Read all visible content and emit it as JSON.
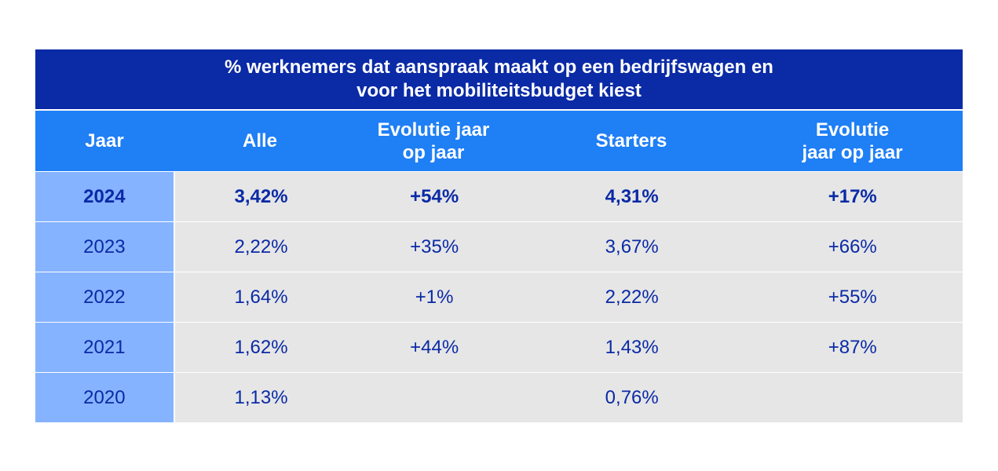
{
  "chart_data": {
    "type": "table",
    "title_lines": [
      "% werknemers dat aanspraak maakt op een bedrijfswagen en",
      "voor het mobiliteitsbudget kiest"
    ],
    "columns": [
      {
        "lines": [
          "Jaar"
        ]
      },
      {
        "lines": [
          "Alle"
        ]
      },
      {
        "lines": [
          "Evolutie jaar",
          "op jaar"
        ]
      },
      {
        "lines": [
          "Starters"
        ]
      },
      {
        "lines": [
          "Evolutie",
          "jaar op jaar"
        ]
      }
    ],
    "rows": [
      {
        "highlight": true,
        "cells": [
          "2024",
          "3,42%",
          "+54%",
          "4,31%",
          "+17%"
        ]
      },
      {
        "highlight": false,
        "cells": [
          "2023",
          "2,22%",
          "+35%",
          "3,67%",
          "+66%"
        ]
      },
      {
        "highlight": false,
        "cells": [
          "2022",
          "1,64%",
          "+1%",
          "2,22%",
          "+55%"
        ]
      },
      {
        "highlight": false,
        "cells": [
          "2021",
          "1,62%",
          "+44%",
          "1,43%",
          "+87%"
        ]
      },
      {
        "highlight": false,
        "cells": [
          "2020",
          "1,13%",
          "",
          "0,76%",
          ""
        ]
      }
    ]
  },
  "colors": {
    "title_bg": "#0a2aa6",
    "header_bg": "#1f7ff5",
    "year_col_bg": "#86b3ff",
    "body_bg": "#e6e6e6",
    "text_dark": "#0a2aa6"
  }
}
